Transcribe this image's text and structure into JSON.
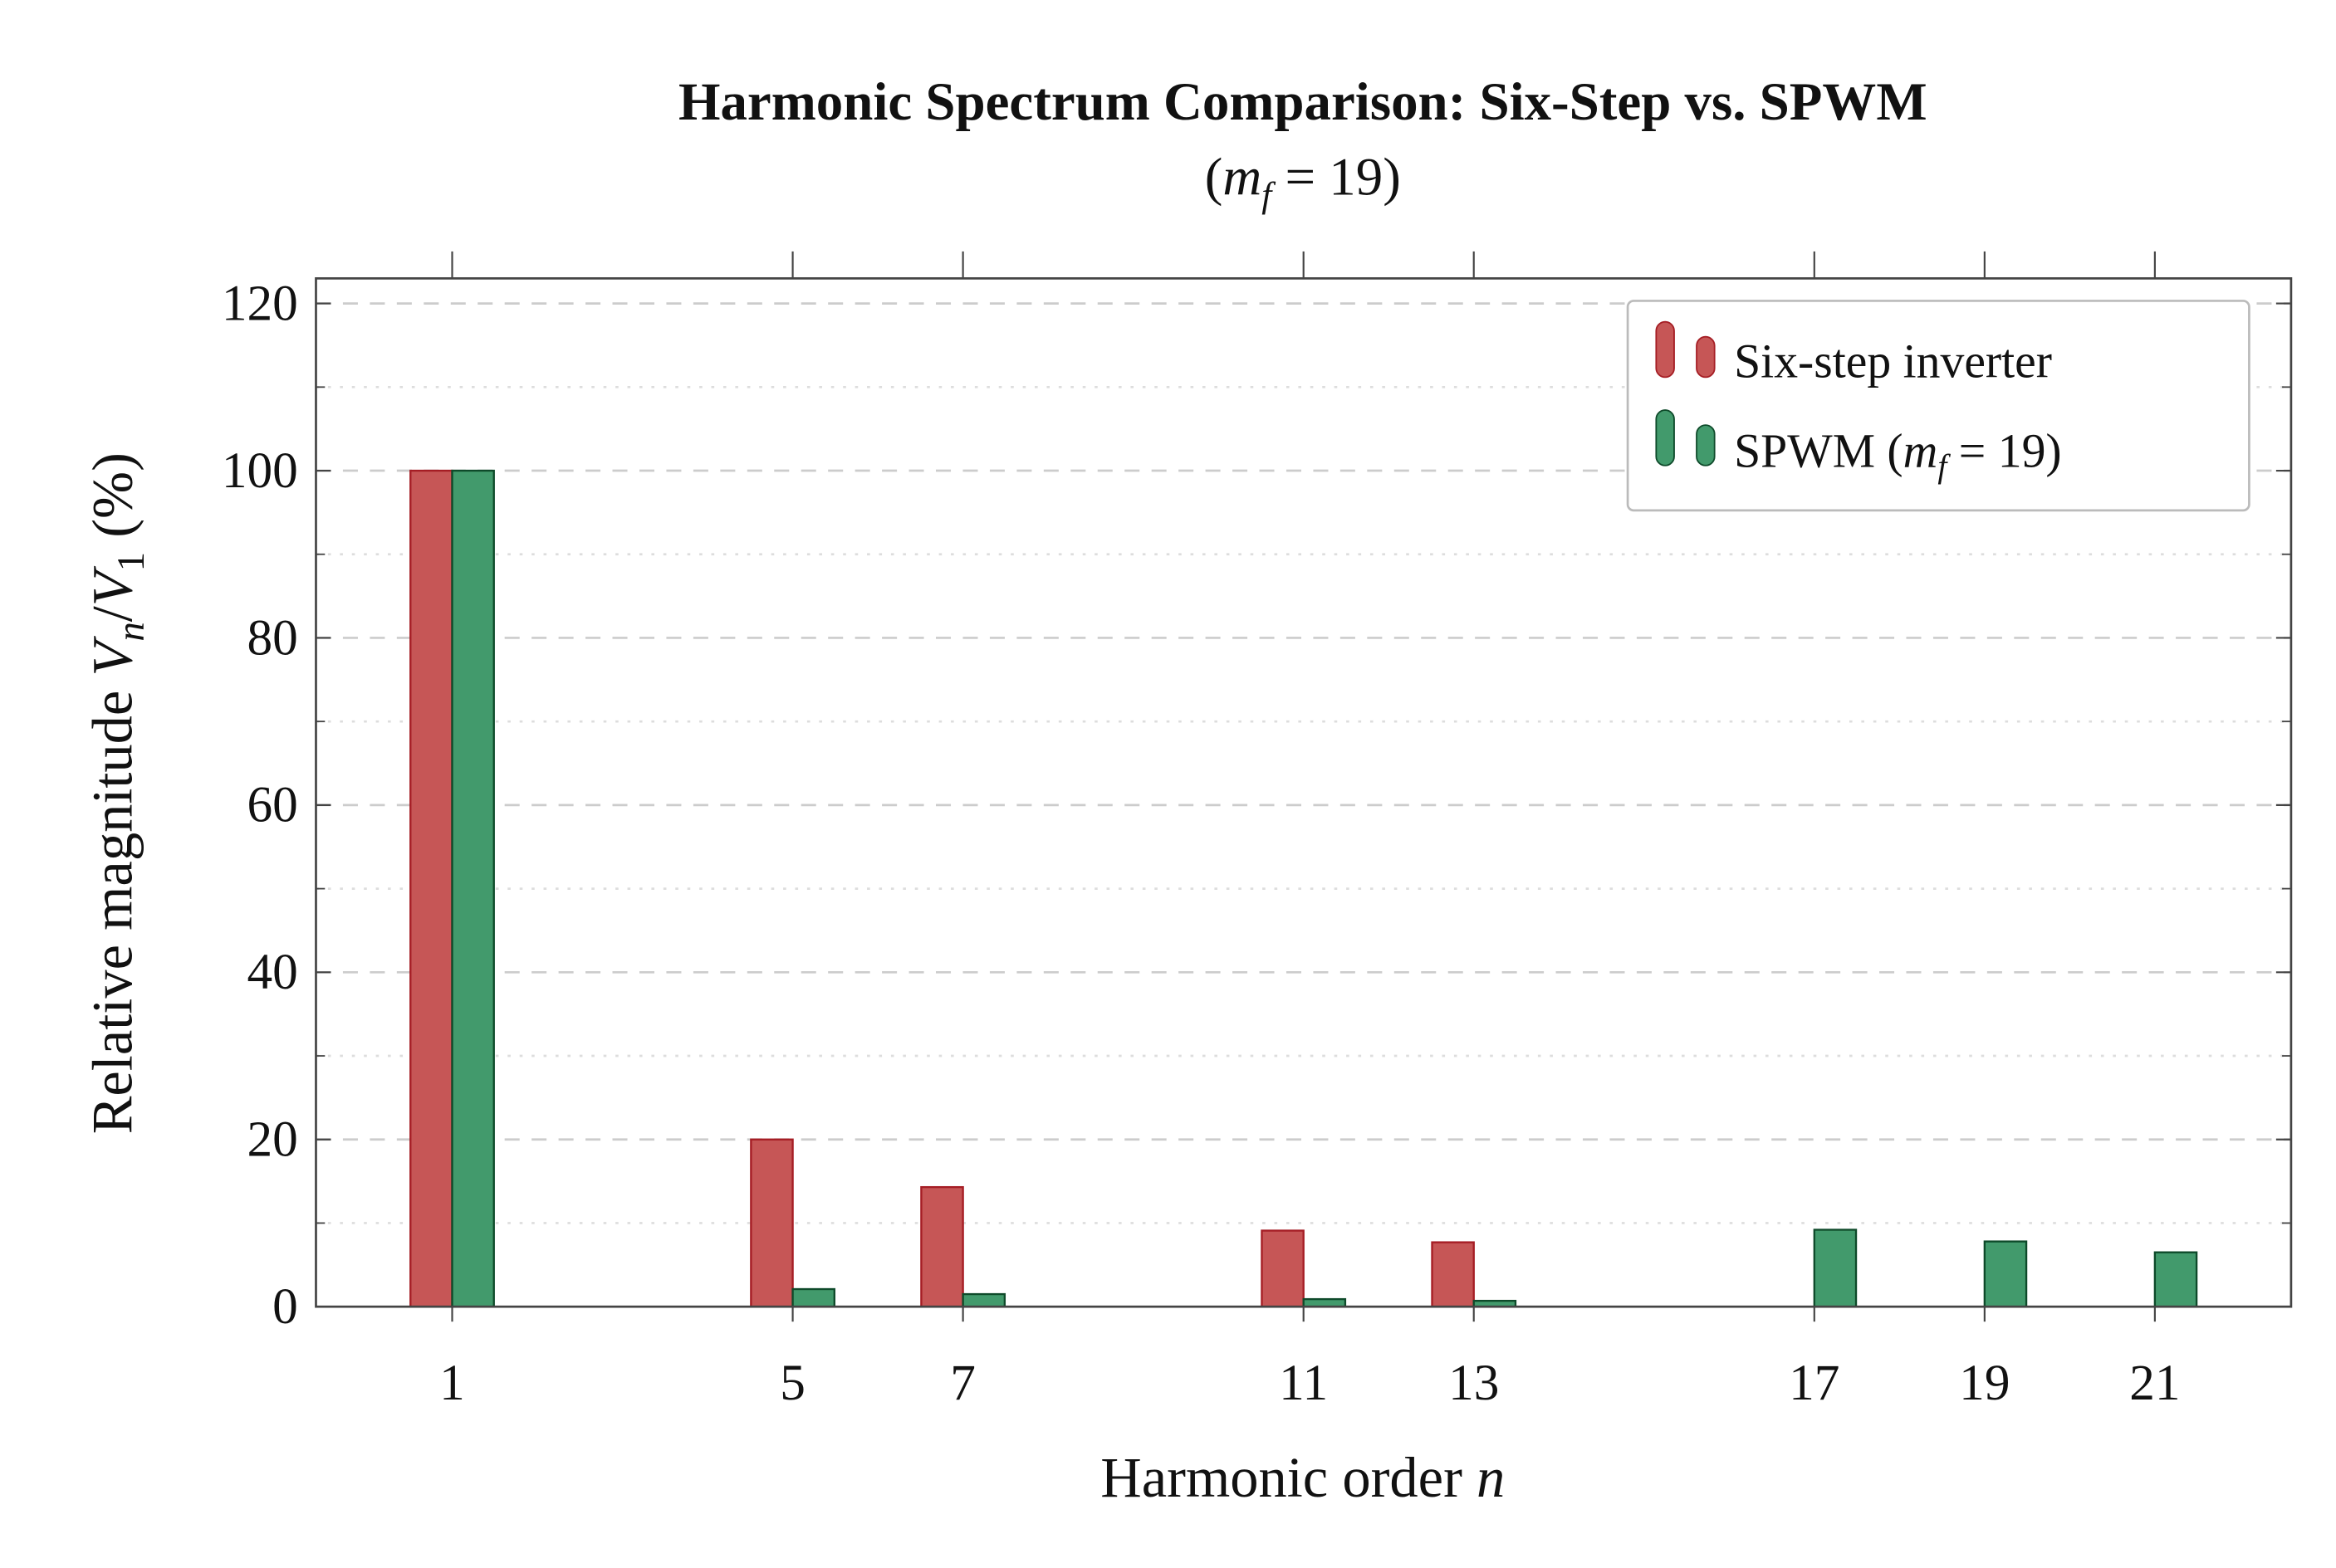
{
  "chart_data": {
    "type": "bar",
    "title": "Harmonic Spectrum Comparison: Six-Step vs. SPWM",
    "subtitle": "(m_f = 19)",
    "xlabel": "Harmonic order n",
    "ylabel": "Relative magnitude V_n/V_1 (%)",
    "categories": [
      1,
      5,
      7,
      11,
      13,
      17,
      19,
      21
    ],
    "series": [
      {
        "name": "Six-step inverter",
        "color": "#c65656",
        "edge": "#a51d24",
        "values": [
          100,
          20,
          14.3,
          9.1,
          7.7,
          0,
          0,
          0
        ]
      },
      {
        "name": "SPWM (m_f = 19)",
        "color": "#429a6c",
        "edge": "#0e4a2a",
        "values": [
          100,
          2.1,
          1.5,
          0.9,
          0.7,
          9.2,
          7.8,
          6.5
        ]
      }
    ],
    "ylim": [
      0,
      123
    ],
    "xlim": [
      -0.6,
      22.6
    ],
    "yticks": [
      0,
      20,
      40,
      60,
      80,
      100,
      120
    ],
    "grid": "major dashed, minor dotted (y)",
    "legend": "top-right"
  }
}
